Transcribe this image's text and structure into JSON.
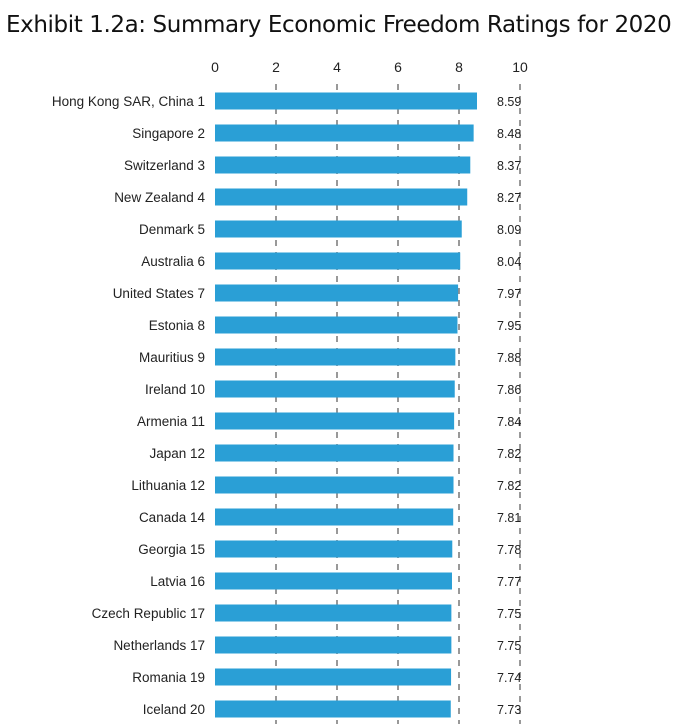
{
  "chart_data": {
    "type": "bar",
    "orientation": "horizontal",
    "title": "Exhibit 1.2a: Summary Economic Freedom Ratings for 2020",
    "categories": [
      "Hong Kong SAR, China",
      "Singapore",
      "Switzerland",
      "New Zealand",
      "Denmark",
      "Australia",
      "United States",
      "Estonia",
      "Mauritius",
      "Ireland",
      "Armenia",
      "Japan",
      "Lithuania",
      "Canada",
      "Georgia",
      "Latvia",
      "Czech Republic",
      "Netherlands",
      "Romania",
      "Iceland"
    ],
    "ranks": [
      "1",
      "2",
      "3",
      "4",
      "5",
      "6",
      "7",
      "8",
      "9",
      "10",
      "11",
      "12",
      "12",
      "14",
      "15",
      "16",
      "17",
      "17",
      "19",
      "20"
    ],
    "values": [
      8.59,
      8.48,
      8.37,
      8.27,
      8.09,
      8.04,
      7.97,
      7.95,
      7.88,
      7.86,
      7.84,
      7.82,
      7.82,
      7.81,
      7.78,
      7.77,
      7.75,
      7.75,
      7.74,
      7.73
    ],
    "value_labels": [
      "8.59",
      "8.48",
      "8.37",
      "8.27",
      "8.09",
      "8.04",
      "7.97",
      "7.95",
      "7.88",
      "7.86",
      "7.84",
      "7.82",
      "7.82",
      "7.81",
      "7.78",
      "7.77",
      "7.75",
      "7.75",
      "7.74",
      "7.73"
    ],
    "xlim": [
      0,
      10
    ],
    "xticks": [
      "0",
      "2",
      "4",
      "6",
      "8",
      "10"
    ],
    "xtick_values": [
      0,
      2,
      4,
      6,
      8,
      10
    ],
    "xaxis_position": "top",
    "grid": "dashed vertical",
    "xlabel": "",
    "ylabel": "",
    "bar_color": "#2a9fd6"
  }
}
